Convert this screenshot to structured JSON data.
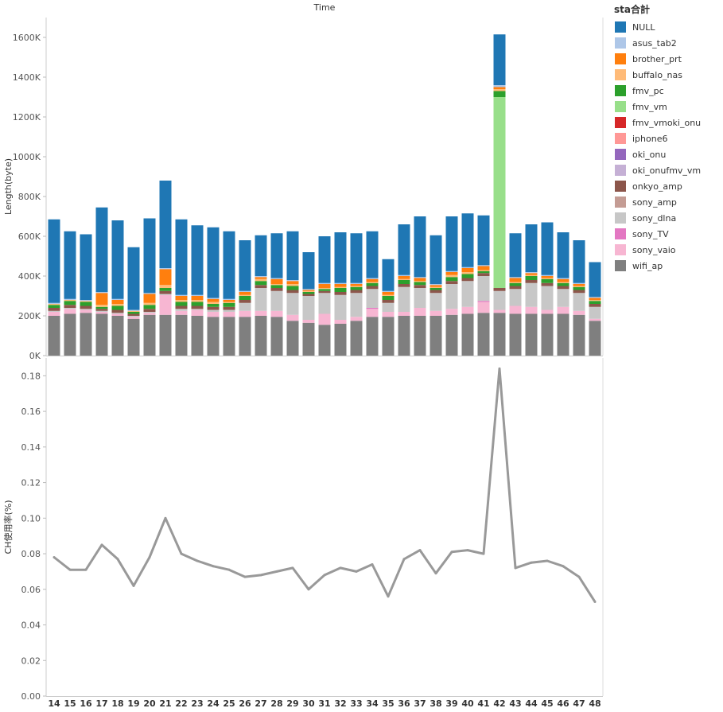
{
  "header": {
    "x_title": "Time"
  },
  "legend": {
    "title": "sta合計"
  },
  "chart_data": [
    {
      "type": "bar",
      "stacked": true,
      "ylabel": "Length(byte)",
      "ylim": [
        0,
        1700000
      ],
      "yticks": [
        "0K",
        "200K",
        "400K",
        "600K",
        "800K",
        "1000K",
        "1200K",
        "1400K",
        "1600K"
      ],
      "grid": false,
      "legend_position": "right",
      "categories": [
        "14",
        "15",
        "16",
        "17",
        "18",
        "19",
        "20",
        "21",
        "22",
        "23",
        "24",
        "25",
        "26",
        "27",
        "28",
        "29",
        "30",
        "31",
        "32",
        "33",
        "34",
        "35",
        "36",
        "37",
        "38",
        "39",
        "40",
        "41",
        "42",
        "43",
        "44",
        "45",
        "46",
        "47",
        "48"
      ],
      "series": [
        {
          "name": "wifi_ap",
          "color": "#7f7f7f",
          "values": [
            200000,
            210000,
            215000,
            210000,
            200000,
            185000,
            205000,
            205000,
            205000,
            200000,
            195000,
            195000,
            195000,
            200000,
            195000,
            175000,
            165000,
            155000,
            160000,
            175000,
            195000,
            195000,
            200000,
            200000,
            200000,
            205000,
            210000,
            215000,
            215000,
            210000,
            210000,
            210000,
            210000,
            205000,
            175000
          ]
        },
        {
          "name": "sony_vaio",
          "color": "#f7b6d2",
          "values": [
            20000,
            25000,
            15000,
            10000,
            10000,
            10000,
            10000,
            100000,
            20000,
            30000,
            25000,
            25000,
            30000,
            25000,
            30000,
            30000,
            15000,
            55000,
            20000,
            20000,
            40000,
            25000,
            20000,
            40000,
            25000,
            30000,
            35000,
            55000,
            15000,
            40000,
            35000,
            20000,
            35000,
            20000,
            10000
          ]
        },
        {
          "name": "sony_TV",
          "color": "#e377c2",
          "values": [
            0,
            0,
            0,
            0,
            0,
            0,
            0,
            0,
            0,
            0,
            0,
            0,
            0,
            0,
            0,
            0,
            0,
            0,
            0,
            0,
            5000,
            0,
            0,
            0,
            0,
            0,
            0,
            5000,
            0,
            0,
            0,
            0,
            0,
            0,
            0
          ]
        },
        {
          "name": "sony_dlna",
          "color": "#c7c7c7",
          "values": [
            5000,
            5000,
            5000,
            5000,
            5000,
            5000,
            5000,
            5000,
            10000,
            5000,
            10000,
            10000,
            40000,
            115000,
            100000,
            110000,
            120000,
            105000,
            125000,
            120000,
            95000,
            45000,
            125000,
            100000,
            90000,
            125000,
            130000,
            125000,
            95000,
            85000,
            120000,
            120000,
            90000,
            90000,
            60000
          ]
        },
        {
          "name": "sony_amp",
          "color": "#c49c94",
          "values": [
            0,
            0,
            0,
            0,
            0,
            0,
            0,
            0,
            0,
            0,
            0,
            0,
            0,
            0,
            0,
            0,
            0,
            0,
            0,
            0,
            0,
            0,
            0,
            0,
            0,
            0,
            0,
            0,
            0,
            0,
            0,
            0,
            0,
            0,
            0
          ]
        },
        {
          "name": "onkyo_amp",
          "color": "#8c564b",
          "values": [
            15000,
            15000,
            15000,
            10000,
            15000,
            10000,
            15000,
            15000,
            15000,
            15000,
            15000,
            15000,
            15000,
            15000,
            15000,
            15000,
            10000,
            10000,
            15000,
            15000,
            15000,
            15000,
            15000,
            15000,
            15000,
            15000,
            15000,
            15000,
            15000,
            15000,
            15000,
            15000,
            15000,
            15000,
            15000
          ]
        },
        {
          "name": "oki_onufmv_vm",
          "color": "#c5b0d5",
          "values": [
            0,
            0,
            0,
            0,
            0,
            0,
            0,
            0,
            0,
            0,
            0,
            0,
            0,
            0,
            0,
            0,
            0,
            0,
            0,
            0,
            0,
            0,
            0,
            0,
            0,
            0,
            0,
            0,
            0,
            0,
            0,
            0,
            0,
            0,
            0
          ]
        },
        {
          "name": "oki_onu",
          "color": "#9467bd",
          "values": [
            0,
            0,
            0,
            0,
            0,
            0,
            0,
            0,
            0,
            0,
            0,
            0,
            0,
            0,
            0,
            0,
            0,
            0,
            0,
            0,
            0,
            0,
            0,
            0,
            0,
            0,
            0,
            0,
            0,
            0,
            0,
            0,
            0,
            0,
            0
          ]
        },
        {
          "name": "iphone6",
          "color": "#ff9896",
          "values": [
            0,
            0,
            0,
            0,
            0,
            0,
            0,
            0,
            0,
            0,
            0,
            0,
            0,
            0,
            0,
            0,
            0,
            0,
            0,
            0,
            0,
            0,
            0,
            0,
            0,
            0,
            0,
            0,
            0,
            0,
            0,
            0,
            0,
            0,
            0
          ]
        },
        {
          "name": "fmv_vmoki_onu",
          "color": "#d62728",
          "values": [
            0,
            0,
            0,
            0,
            0,
            0,
            0,
            0,
            0,
            0,
            0,
            0,
            0,
            0,
            0,
            0,
            0,
            0,
            0,
            0,
            0,
            0,
            0,
            0,
            0,
            0,
            0,
            0,
            0,
            0,
            0,
            0,
            0,
            0,
            0
          ]
        },
        {
          "name": "fmv_vm",
          "color": "#98df8a",
          "values": [
            0,
            0,
            0,
            0,
            0,
            0,
            0,
            0,
            0,
            0,
            0,
            0,
            0,
            0,
            0,
            0,
            0,
            0,
            0,
            0,
            0,
            0,
            0,
            0,
            0,
            0,
            0,
            0,
            960000,
            0,
            0,
            0,
            0,
            0,
            0
          ]
        },
        {
          "name": "fmv_pc",
          "color": "#2ca02c",
          "values": [
            15000,
            20000,
            20000,
            10000,
            20000,
            10000,
            20000,
            15000,
            20000,
            20000,
            15000,
            20000,
            20000,
            20000,
            15000,
            20000,
            10000,
            10000,
            20000,
            15000,
            15000,
            20000,
            20000,
            15000,
            10000,
            20000,
            20000,
            10000,
            30000,
            15000,
            20000,
            20000,
            15000,
            15000,
            15000
          ]
        },
        {
          "name": "buffalo_nas",
          "color": "#ffbb78",
          "values": [
            5000,
            5000,
            5000,
            10000,
            10000,
            5000,
            10000,
            15000,
            10000,
            10000,
            10000,
            5000,
            5000,
            10000,
            5000,
            10000,
            5000,
            5000,
            5000,
            5000,
            5000,
            5000,
            5000,
            5000,
            5000,
            10000,
            10000,
            5000,
            10000,
            5000,
            5000,
            5000,
            5000,
            5000,
            5000
          ]
        },
        {
          "name": "brother_prt",
          "color": "#ff7f0e",
          "values": [
            0,
            0,
            0,
            60000,
            20000,
            0,
            45000,
            80000,
            20000,
            20000,
            15000,
            10000,
            15000,
            10000,
            25000,
            15000,
            5000,
            20000,
            15000,
            10000,
            15000,
            15000,
            15000,
            15000,
            10000,
            15000,
            20000,
            20000,
            10000,
            20000,
            10000,
            10000,
            15000,
            10000,
            10000
          ]
        },
        {
          "name": "asus_tab2",
          "color": "#aec7e8",
          "values": [
            5000,
            5000,
            5000,
            5000,
            5000,
            5000,
            5000,
            5000,
            5000,
            5000,
            5000,
            5000,
            5000,
            5000,
            5000,
            5000,
            5000,
            5000,
            5000,
            5000,
            5000,
            5000,
            5000,
            5000,
            5000,
            5000,
            5000,
            5000,
            10000,
            5000,
            5000,
            5000,
            5000,
            5000,
            5000
          ]
        },
        {
          "name": "NULL",
          "color": "#1f77b4",
          "values": [
            420000,
            340000,
            330000,
            425000,
            395000,
            315000,
            375000,
            440000,
            380000,
            350000,
            355000,
            340000,
            255000,
            205000,
            225000,
            245000,
            185000,
            235000,
            255000,
            250000,
            235000,
            160000,
            255000,
            305000,
            245000,
            275000,
            270000,
            250000,
            255000,
            220000,
            240000,
            265000,
            230000,
            215000,
            175000
          ]
        }
      ]
    },
    {
      "type": "line",
      "ylabel": "CH使用率(%)",
      "ylim": [
        0,
        0.19
      ],
      "yticks": [
        "0.00",
        "0.02",
        "0.04",
        "0.06",
        "0.08",
        "0.10",
        "0.12",
        "0.14",
        "0.16",
        "0.18"
      ],
      "color": "#999999",
      "categories": [
        "14",
        "15",
        "16",
        "17",
        "18",
        "19",
        "20",
        "21",
        "22",
        "23",
        "24",
        "25",
        "26",
        "27",
        "28",
        "29",
        "30",
        "31",
        "32",
        "33",
        "34",
        "35",
        "36",
        "37",
        "38",
        "39",
        "40",
        "41",
        "42",
        "43",
        "44",
        "45",
        "46",
        "47",
        "48"
      ],
      "values": [
        0.078,
        0.071,
        0.071,
        0.085,
        0.077,
        0.062,
        0.078,
        0.1,
        0.08,
        0.076,
        0.073,
        0.071,
        0.067,
        0.068,
        0.07,
        0.072,
        0.06,
        0.068,
        0.072,
        0.07,
        0.074,
        0.056,
        0.077,
        0.082,
        0.069,
        0.081,
        0.082,
        0.08,
        0.184,
        0.072,
        0.075,
        0.076,
        0.073,
        0.067,
        0.053
      ]
    }
  ]
}
